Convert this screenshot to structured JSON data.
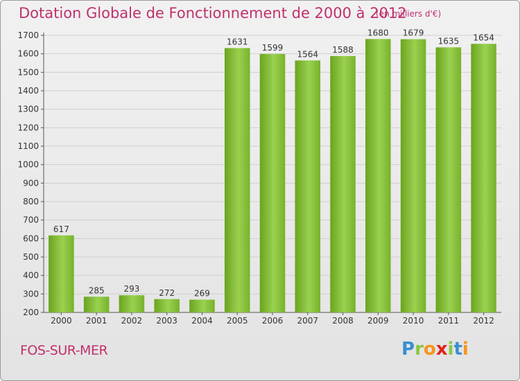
{
  "chart": {
    "title": "Dotation Globale de Fonctionnement de 2000 à 2012",
    "unit": "(en milliers d'€)"
  },
  "town": {
    "name": "FOS-SUR-MER"
  },
  "logo": {
    "letters": [
      "P",
      "r",
      "o",
      "x",
      "i",
      "t",
      "i"
    ],
    "colors": [
      "#3a8fd0",
      "#8cc63f",
      "#f7941d",
      "#e2231a",
      "#8cc63f",
      "#3a8fd0",
      "#f7941d"
    ]
  },
  "chart_data": {
    "type": "bar",
    "categories": [
      "2000",
      "2001",
      "2002",
      "2003",
      "2004",
      "2005",
      "2006",
      "2007",
      "2008",
      "2009",
      "2010",
      "2011",
      "2012"
    ],
    "values": [
      617,
      285,
      293,
      272,
      269,
      1631,
      1599,
      1564,
      1588,
      1680,
      1679,
      1635,
      1654
    ],
    "ylim": [
      200,
      1700
    ],
    "yticks": [
      200,
      300,
      400,
      500,
      600,
      700,
      800,
      900,
      1000,
      1100,
      1200,
      1300,
      1400,
      1500,
      1600,
      1700
    ],
    "bar_color": "#7ab52a",
    "grid": true,
    "title": "Dotation Globale de Fonctionnement de 2000 à 2012",
    "xlabel": "",
    "ylabel": ""
  }
}
